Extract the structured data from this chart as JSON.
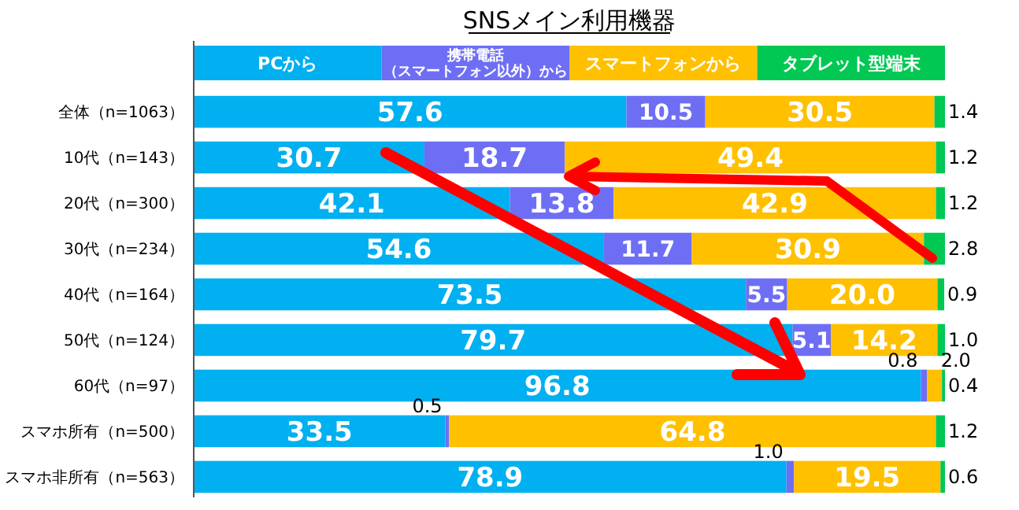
{
  "chart_data": {
    "type": "bar",
    "orientation": "horizontal",
    "stacked": true,
    "title": "SNSメイン利用機器",
    "legend": "top",
    "tick_labels": "y",
    "xlim": [
      0,
      100
    ],
    "categories": [
      "全体（n=1063）",
      "10代（n=143）",
      "20代（n=300）",
      "30代（n=234）",
      "40代（n=164）",
      "50代（n=124）",
      "60代（n=97）",
      "スマホ所有（n=500）",
      "スマホ非所有（n=563）"
    ],
    "series": [
      {
        "name": "PCから",
        "color": "#00b0f0",
        "values": [
          57.6,
          30.7,
          42.1,
          54.6,
          73.5,
          79.7,
          96.8,
          33.5,
          78.9
        ],
        "value_labels": [
          "57.6",
          "30.7",
          "42.1",
          "54.6",
          "73.5",
          "79.7",
          "96.8",
          "33.5",
          "78.9"
        ]
      },
      {
        "name": "携帯電話（スマートフォン以外）から",
        "color": "#6e6ef5",
        "values": [
          10.5,
          18.7,
          13.8,
          11.7,
          5.5,
          5.1,
          0.8,
          0.5,
          1.0
        ],
        "value_labels": [
          "10.5",
          "18.7",
          "13.8",
          "11.7",
          "5.5",
          "5.1",
          "0.8",
          "0.5",
          "1.0"
        ]
      },
      {
        "name": "スマートフォンから",
        "color": "#ffc000",
        "values": [
          30.5,
          49.4,
          42.9,
          30.9,
          20.0,
          14.2,
          2.0,
          64.8,
          19.5
        ],
        "value_labels": [
          "30.5",
          "49.4",
          "42.9",
          "30.9",
          "20.0",
          "14.2",
          "2.0",
          "64.8",
          "19.5"
        ]
      },
      {
        "name": "タブレット型端末",
        "color": "#00c853",
        "values": [
          1.4,
          1.2,
          1.2,
          2.8,
          0.9,
          1.0,
          0.4,
          1.2,
          0.6
        ],
        "value_labels": [
          "1.4",
          "1.2",
          "1.2",
          "2.8",
          "0.9",
          "1.0",
          "0.4",
          "1.2",
          "0.6"
        ]
      }
    ]
  }
}
